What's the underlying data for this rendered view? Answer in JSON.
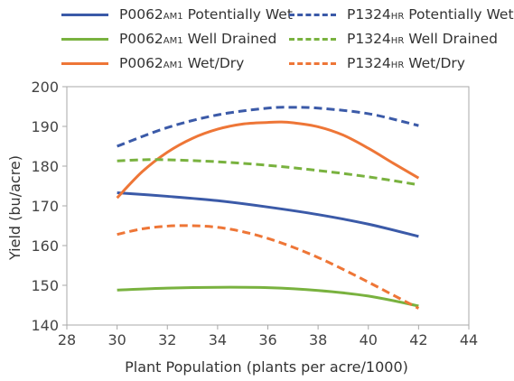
{
  "chart_data": {
    "type": "line",
    "xlabel": "Plant Population (plants per acre/1000)",
    "ylabel": "Yield (bu/acre)",
    "xlim": [
      28,
      44
    ],
    "ylim": [
      140,
      200
    ],
    "xticks": [
      28,
      30,
      32,
      34,
      36,
      38,
      40,
      42,
      44
    ],
    "yticks": [
      140,
      150,
      160,
      170,
      180,
      190,
      200
    ],
    "grid": false,
    "legend_position": "top",
    "series": [
      {
        "name": "P0062AM1 Potentially Wet",
        "hybrid": "P0062",
        "hybrid_suffix": "AM1",
        "environment": "Potentially Wet",
        "color": "#3b5aa8",
        "dash": "solid",
        "x": [
          30,
          32,
          34,
          36,
          38,
          40,
          42
        ],
        "y": [
          173.3,
          172.4,
          171.3,
          169.7,
          167.8,
          165.4,
          162.3
        ]
      },
      {
        "name": "P0062AM1 Well Drained",
        "hybrid": "P0062",
        "hybrid_suffix": "AM1",
        "environment": "Well Drained",
        "color": "#79b23f",
        "dash": "solid",
        "x": [
          30,
          32,
          34,
          36,
          38,
          40,
          42
        ],
        "y": [
          148.8,
          149.3,
          149.5,
          149.4,
          148.7,
          147.3,
          144.8
        ]
      },
      {
        "name": "P0062AM1 Wet/Dry",
        "hybrid": "P0062",
        "hybrid_suffix": "AM1",
        "environment": "Wet/Dry",
        "color": "#ee7637",
        "dash": "solid",
        "x": [
          30,
          31,
          32,
          33,
          34,
          35,
          36,
          36.5,
          37,
          38,
          39,
          40,
          41,
          42
        ],
        "y": [
          172.0,
          178.6,
          183.5,
          187.0,
          189.3,
          190.6,
          191.0,
          191.1,
          190.9,
          189.9,
          187.8,
          184.5,
          180.7,
          177.0
        ]
      },
      {
        "name": "P1324HR Potentially Wet",
        "hybrid": "P1324",
        "hybrid_suffix": "HR",
        "environment": "Potentially Wet",
        "color": "#3b5aa8",
        "dash": "dashed",
        "x": [
          30,
          32,
          34,
          36,
          37,
          38,
          40,
          42
        ],
        "y": [
          185.0,
          189.7,
          192.9,
          194.6,
          194.8,
          194.6,
          193.2,
          190.2
        ]
      },
      {
        "name": "P1324HR Well Drained",
        "hybrid": "P1324",
        "hybrid_suffix": "HR",
        "environment": "Well Drained",
        "color": "#79b23f",
        "dash": "dashed",
        "x": [
          30,
          31,
          32,
          34,
          36,
          38,
          40,
          42
        ],
        "y": [
          181.3,
          181.6,
          181.6,
          181.1,
          180.2,
          178.9,
          177.3,
          175.3
        ]
      },
      {
        "name": "P1324HR Wet/Dry",
        "hybrid": "P1324",
        "hybrid_suffix": "HR",
        "environment": "Wet/Dry",
        "color": "#ee7637",
        "dash": "dashed",
        "x": [
          30,
          31,
          32,
          33,
          34,
          35,
          36,
          37,
          38,
          39,
          40,
          41,
          42
        ],
        "y": [
          162.8,
          164.2,
          164.9,
          165.0,
          164.6,
          163.5,
          161.8,
          159.6,
          157.0,
          154.0,
          150.8,
          147.5,
          144.2
        ]
      }
    ]
  }
}
